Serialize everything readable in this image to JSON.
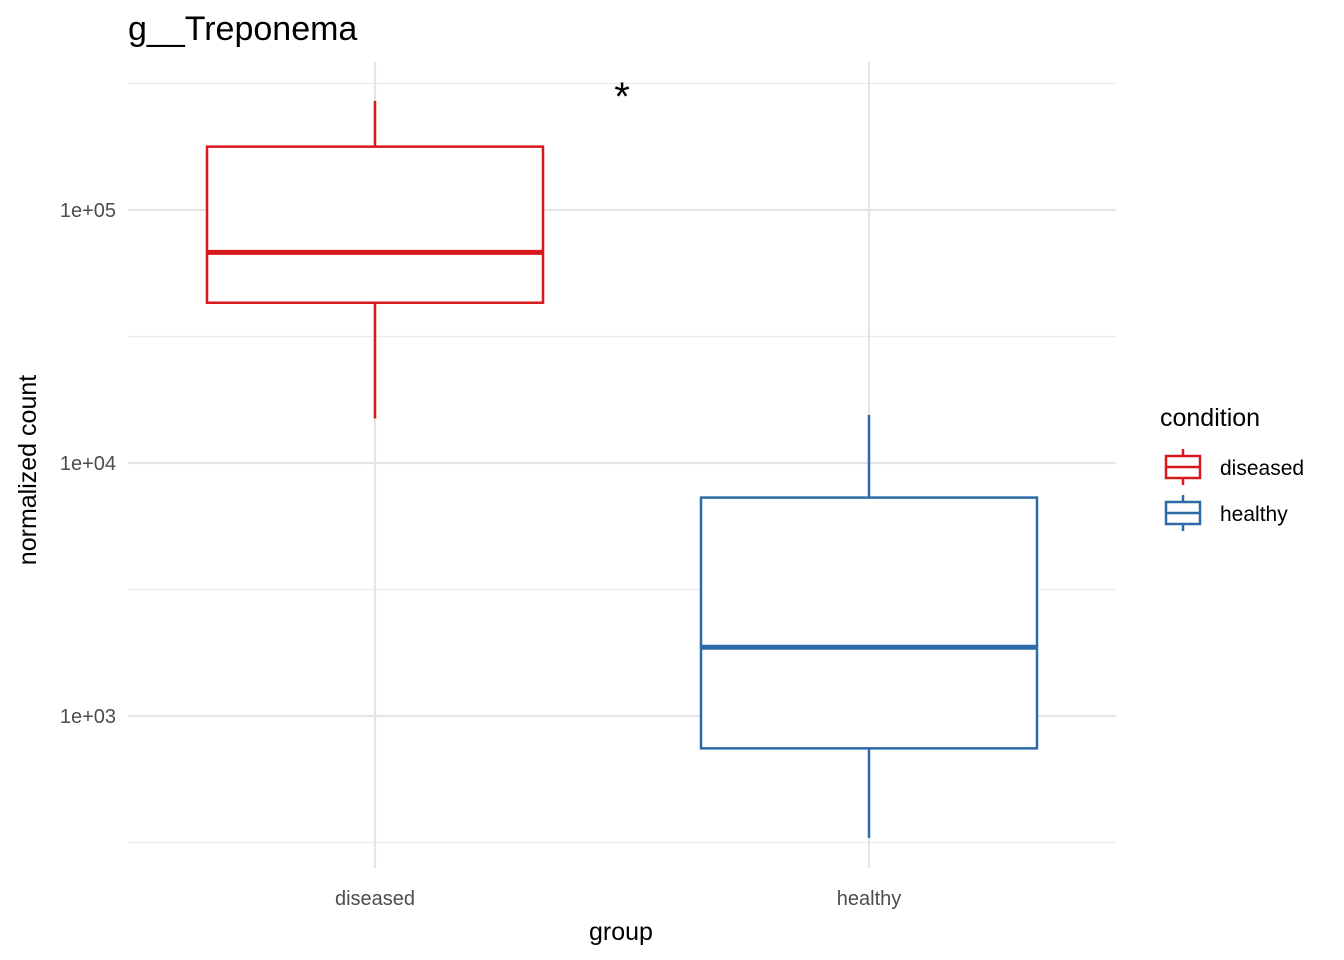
{
  "chart_data": {
    "type": "boxplot",
    "title": "g__Treponema",
    "xlabel": "group",
    "ylabel": "normalized count",
    "y_scale": "log10",
    "ylim": [
      340,
      330000
    ],
    "y_ticks": [
      {
        "value": 1000,
        "label": "1e+03"
      },
      {
        "value": 10000,
        "label": "1e+04"
      },
      {
        "value": 100000,
        "label": "1e+05"
      }
    ],
    "y_minor_ticks": [
      316.2,
      3162.3,
      31622.8,
      316227.8
    ],
    "categories": [
      "diseased",
      "healthy"
    ],
    "boxes": [
      {
        "group": "diseased",
        "condition": "diseased",
        "color": "#d7191c",
        "whisker_low": 15000,
        "q1": 43000,
        "median": 68000,
        "q3": 178000,
        "whisker_high": 270000
      },
      {
        "group": "healthy",
        "condition": "healthy",
        "color": "#2c6aa8",
        "whisker_low": 330,
        "q1": 745,
        "median": 1870,
        "q3": 7300,
        "whisker_high": 15500
      }
    ],
    "annotation": {
      "text": "*",
      "between": [
        "diseased",
        "healthy"
      ]
    },
    "legend": {
      "title": "condition",
      "position": "right",
      "items": [
        {
          "label": "diseased",
          "color": "#d7191c"
        },
        {
          "label": "healthy",
          "color": "#2c6aa8"
        }
      ]
    },
    "grid": true
  }
}
